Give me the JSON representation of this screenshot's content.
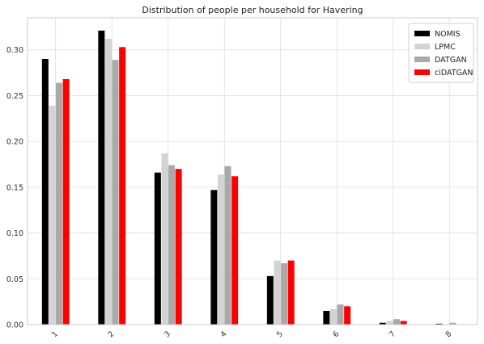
{
  "chart_data": {
    "type": "bar",
    "title": "Distribution of people per household for Havering",
    "xlabel": "",
    "ylabel": "",
    "categories": [
      "1",
      "2",
      "3",
      "4",
      "5",
      "6",
      "7",
      "8"
    ],
    "ylim": [
      0,
      0.335
    ],
    "yticks": [
      "0.00",
      "0.05",
      "0.10",
      "0.15",
      "0.20",
      "0.25",
      "0.30"
    ],
    "grid": true,
    "legend_position": "top-right",
    "series": [
      {
        "name": "NOMIS",
        "color": "#000000",
        "values": [
          0.29,
          0.321,
          0.166,
          0.147,
          0.053,
          0.015,
          0.002,
          0.001
        ]
      },
      {
        "name": "LPMC",
        "color": "#d3d3d3",
        "values": [
          0.239,
          0.312,
          0.187,
          0.164,
          0.07,
          0.017,
          0.004,
          0.0
        ]
      },
      {
        "name": "DATGAN",
        "color": "#a9a9a9",
        "values": [
          0.264,
          0.289,
          0.174,
          0.173,
          0.067,
          0.022,
          0.006,
          0.002
        ]
      },
      {
        "name": "ciDATGAN",
        "color": "#ff0000",
        "values": [
          0.268,
          0.303,
          0.17,
          0.162,
          0.07,
          0.02,
          0.004,
          0.0
        ]
      }
    ]
  }
}
